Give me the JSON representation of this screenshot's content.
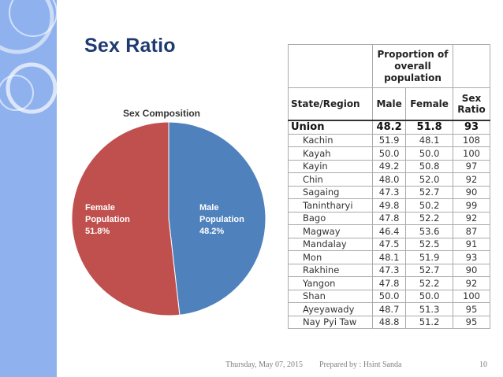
{
  "slide": {
    "title": "Sex Ratio",
    "footer": {
      "date": "Thursday, May 07, 2015",
      "prepared_by": "Prepared by : Hsint Sanda",
      "page_number": "10"
    }
  },
  "chart_data": {
    "type": "pie",
    "title": "Sex Composition",
    "slices": [
      {
        "label": "Male Population",
        "value": 48.2,
        "display": "48.2%",
        "color": "#4f81bd"
      },
      {
        "label": "Female Population",
        "value": 51.8,
        "display": "51.8%",
        "color": "#c0504d"
      }
    ]
  },
  "table": {
    "group_header": "Proportion of overall population",
    "columns": [
      "State/Region",
      "Male",
      "Female",
      "Sex Ratio"
    ],
    "union": {
      "name": "Union",
      "male": "48.2",
      "female": "51.8",
      "ratio": "93"
    },
    "rows": [
      {
        "name": "Kachin",
        "male": "51.9",
        "female": "48.1",
        "ratio": "108"
      },
      {
        "name": "Kayah",
        "male": "50.0",
        "female": "50.0",
        "ratio": "100"
      },
      {
        "name": "Kayin",
        "male": "49.2",
        "female": "50.8",
        "ratio": "97"
      },
      {
        "name": "Chin",
        "male": "48.0",
        "female": "52.0",
        "ratio": "92"
      },
      {
        "name": "Sagaing",
        "male": "47.3",
        "female": "52.7",
        "ratio": "90"
      },
      {
        "name": "Tanintharyi",
        "male": "49.8",
        "female": "50.2",
        "ratio": "99"
      },
      {
        "name": "Bago",
        "male": "47.8",
        "female": "52.2",
        "ratio": "92"
      },
      {
        "name": "Magway",
        "male": "46.4",
        "female": "53.6",
        "ratio": "87"
      },
      {
        "name": "Mandalay",
        "male": "47.5",
        "female": "52.5",
        "ratio": "91"
      },
      {
        "name": "Mon",
        "male": "48.1",
        "female": "51.9",
        "ratio": "93"
      },
      {
        "name": "Rakhine",
        "male": "47.3",
        "female": "52.7",
        "ratio": "90"
      },
      {
        "name": "Yangon",
        "male": "47.8",
        "female": "52.2",
        "ratio": "92"
      },
      {
        "name": "Shan",
        "male": "50.0",
        "female": "50.0",
        "ratio": "100"
      },
      {
        "name": "Ayeyawady",
        "male": "48.7",
        "female": "51.3",
        "ratio": "95"
      },
      {
        "name": "Nay Pyi Taw",
        "male": "48.8",
        "female": "51.2",
        "ratio": "95"
      }
    ]
  }
}
